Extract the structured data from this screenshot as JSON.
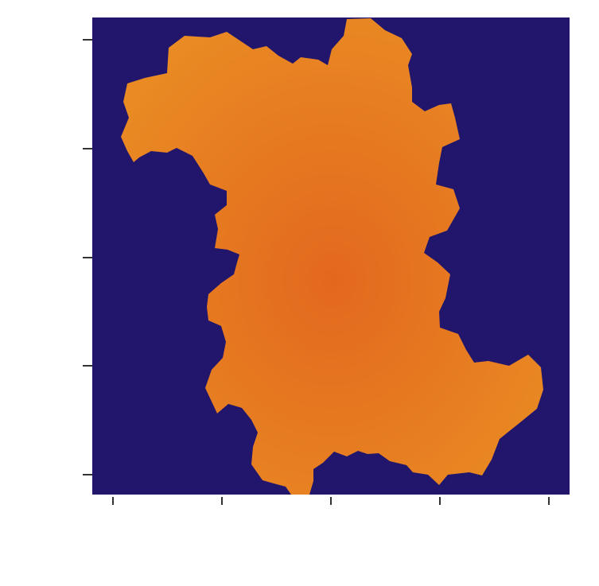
{
  "chart_data": {
    "type": "heatmap",
    "title": "",
    "xlabel": "",
    "ylabel": "",
    "x_ticks": [
      "",
      "",
      "",
      "",
      ""
    ],
    "y_ticks": [
      "",
      "",
      "",
      "",
      ""
    ],
    "grid": false,
    "legend": "none",
    "colors": {
      "background": "#21166b",
      "fractal_center": "#e3681e",
      "fractal_edge": "#e98a23",
      "tick": "#333333",
      "tick_label": "#bbbbbb"
    },
    "region_boundary": [
      [
        155,
        128
      ],
      [
        160,
        105
      ],
      [
        182,
        98
      ],
      [
        210,
        92
      ],
      [
        212,
        60
      ],
      [
        232,
        45
      ],
      [
        264,
        47
      ],
      [
        285,
        40
      ],
      [
        300,
        50
      ],
      [
        318,
        62
      ],
      [
        335,
        58
      ],
      [
        350,
        70
      ],
      [
        368,
        80
      ],
      [
        378,
        72
      ],
      [
        400,
        75
      ],
      [
        412,
        82
      ],
      [
        417,
        62
      ],
      [
        432,
        45
      ],
      [
        436,
        24
      ],
      [
        466,
        23
      ],
      [
        484,
        38
      ],
      [
        505,
        48
      ],
      [
        518,
        68
      ],
      [
        513,
        82
      ],
      [
        518,
        110
      ],
      [
        518,
        128
      ],
      [
        534,
        140
      ],
      [
        552,
        132
      ],
      [
        567,
        130
      ],
      [
        572,
        148
      ],
      [
        578,
        175
      ],
      [
        556,
        185
      ],
      [
        552,
        205
      ],
      [
        548,
        232
      ],
      [
        570,
        238
      ],
      [
        578,
        262
      ],
      [
        562,
        290
      ],
      [
        540,
        298
      ],
      [
        533,
        318
      ],
      [
        550,
        330
      ],
      [
        566,
        345
      ],
      [
        560,
        375
      ],
      [
        552,
        392
      ],
      [
        553,
        412
      ],
      [
        576,
        420
      ],
      [
        586,
        440
      ],
      [
        596,
        456
      ],
      [
        614,
        454
      ],
      [
        640,
        460
      ],
      [
        664,
        446
      ],
      [
        680,
        462
      ],
      [
        683,
        490
      ],
      [
        675,
        514
      ],
      [
        653,
        532
      ],
      [
        628,
        552
      ],
      [
        618,
        578
      ],
      [
        606,
        598
      ],
      [
        590,
        594
      ],
      [
        563,
        597
      ],
      [
        552,
        610
      ],
      [
        538,
        597
      ],
      [
        519,
        594
      ],
      [
        511,
        585
      ],
      [
        490,
        580
      ],
      [
        476,
        570
      ],
      [
        462,
        571
      ],
      [
        450,
        567
      ],
      [
        436,
        574
      ],
      [
        420,
        568
      ],
      [
        406,
        582
      ],
      [
        394,
        590
      ],
      [
        394,
        605
      ],
      [
        389,
        622
      ],
      [
        366,
        622
      ],
      [
        359,
        612
      ],
      [
        344,
        608
      ],
      [
        330,
        604
      ],
      [
        316,
        584
      ],
      [
        318,
        562
      ],
      [
        324,
        544
      ],
      [
        316,
        528
      ],
      [
        304,
        513
      ],
      [
        287,
        508
      ],
      [
        273,
        520
      ],
      [
        266,
        505
      ],
      [
        258,
        488
      ],
      [
        266,
        465
      ],
      [
        280,
        450
      ],
      [
        284,
        430
      ],
      [
        278,
        410
      ],
      [
        262,
        403
      ],
      [
        260,
        386
      ],
      [
        262,
        370
      ],
      [
        278,
        356
      ],
      [
        294,
        345
      ],
      [
        298,
        330
      ],
      [
        301,
        320
      ],
      [
        286,
        314
      ],
      [
        270,
        312
      ],
      [
        274,
        288
      ],
      [
        270,
        270
      ],
      [
        285,
        258
      ],
      [
        285,
        240
      ],
      [
        264,
        232
      ],
      [
        256,
        218
      ],
      [
        242,
        196
      ],
      [
        222,
        186
      ],
      [
        210,
        192
      ],
      [
        190,
        190
      ],
      [
        175,
        198
      ],
      [
        168,
        204
      ],
      [
        160,
        190
      ],
      [
        152,
        172
      ],
      [
        162,
        148
      ]
    ]
  }
}
